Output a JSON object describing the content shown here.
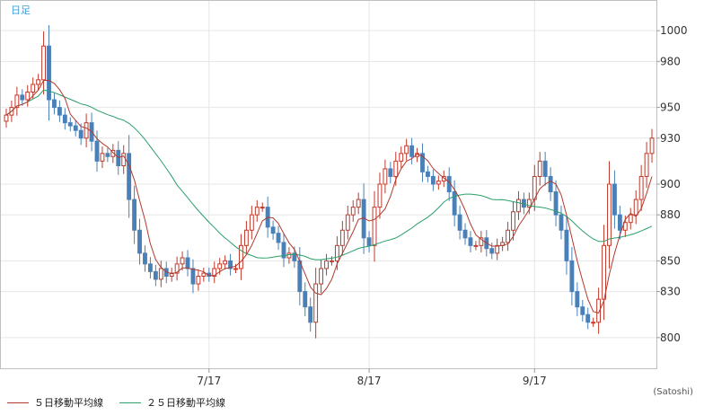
{
  "chart_data": {
    "type": "candlestick",
    "period_label": "日足",
    "credit": "(Satoshi)",
    "y_ticks": [
      800,
      830,
      850,
      880,
      900,
      930,
      950,
      980,
      1000
    ],
    "ylim": [
      780,
      1020
    ],
    "x_ticks": [
      {
        "label": "7/17",
        "index": 38
      },
      {
        "label": "8/17",
        "index": 68
      },
      {
        "label": "9/17",
        "index": 99
      }
    ],
    "grid": true,
    "colors": {
      "up": "#c0392b",
      "down": "#4a80b8",
      "ma5": "#b03a2e",
      "ma25": "#2aa06a",
      "period_text": "#3aa0d8"
    },
    "legend": [
      {
        "label": "５日移動平均線",
        "color": "#b03a2e"
      },
      {
        "label": "２５日移動平均線",
        "color": "#2aa06a"
      }
    ],
    "closes": [
      945,
      950,
      958,
      955,
      960,
      965,
      968,
      990,
      955,
      950,
      945,
      940,
      938,
      935,
      930,
      940,
      928,
      915,
      920,
      918,
      922,
      912,
      920,
      890,
      870,
      855,
      848,
      843,
      838,
      845,
      840,
      842,
      848,
      852,
      845,
      835,
      840,
      842,
      840,
      845,
      848,
      850,
      845,
      845,
      860,
      870,
      880,
      885,
      885,
      872,
      868,
      862,
      852,
      855,
      850,
      830,
      820,
      810,
      835,
      845,
      850,
      850,
      860,
      870,
      880,
      885,
      890,
      865,
      860,
      885,
      900,
      910,
      905,
      915,
      920,
      925,
      918,
      920,
      908,
      905,
      900,
      902,
      905,
      895,
      880,
      870,
      865,
      860,
      860,
      865,
      858,
      855,
      860,
      862,
      870,
      882,
      890,
      885,
      890,
      905,
      915,
      905,
      895,
      880,
      870,
      850,
      830,
      820,
      815,
      810,
      810,
      825,
      860,
      900,
      880,
      870,
      875,
      880,
      890,
      905,
      920,
      930
    ]
  }
}
